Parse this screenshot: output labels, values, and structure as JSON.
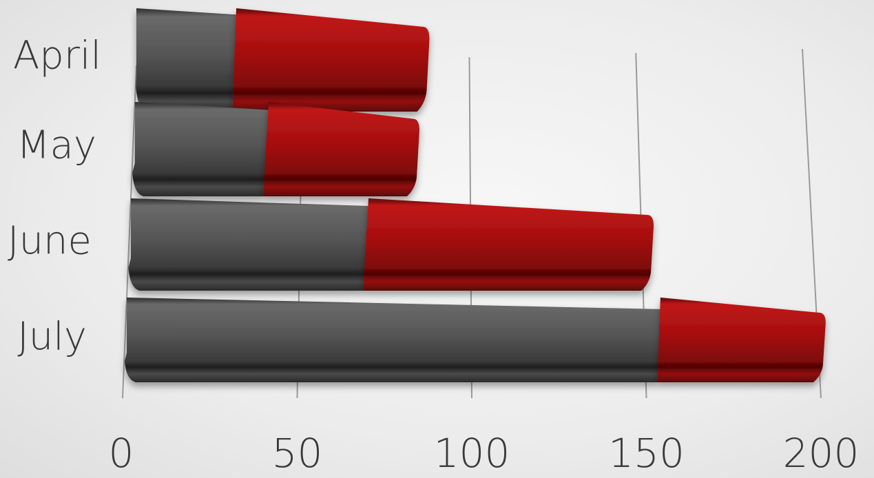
{
  "chart_data": {
    "type": "bar",
    "orientation": "horizontal",
    "stacked": true,
    "categories": [
      "April",
      "May",
      "June",
      "July"
    ],
    "series": [
      {
        "color": "#4a4a4a",
        "values": [
          30,
          40,
          70,
          155
        ]
      },
      {
        "color": "#a30d0d",
        "values": [
          58,
          45,
          84,
          48
        ]
      }
    ],
    "xticks": [
      "0",
      "50",
      "100",
      "150",
      "200"
    ],
    "xlim": [
      0,
      200
    ],
    "grid": true,
    "legend": "none"
  }
}
